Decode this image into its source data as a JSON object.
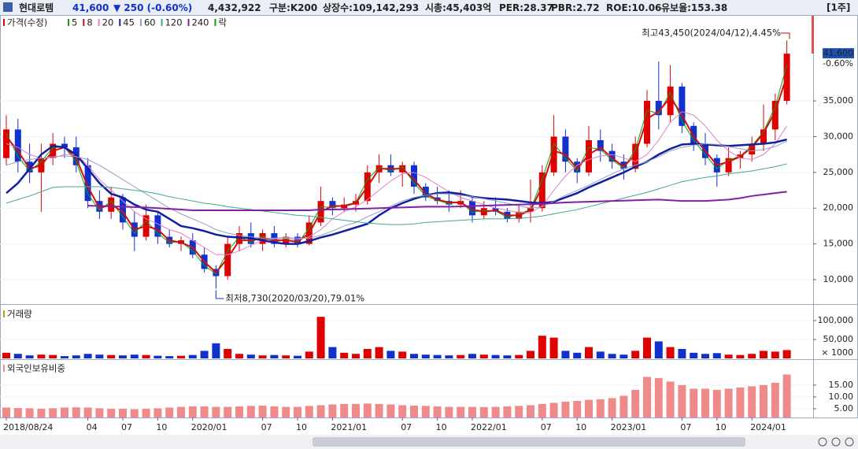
{
  "header": {
    "name": "현대로템",
    "price": "41,600",
    "change": "▼ 250 (-0.60%)",
    "volume": "4,432,922",
    "market": "구분:K200",
    "shares": "상장수:109,142,293",
    "cap": "시총:45,403억",
    "per": "PER:28.37",
    "pbr": "PBR:2.72",
    "roe": "ROE:10.06",
    "reserve": "유보율:153.38",
    "period": "[1주]"
  },
  "chart_data": [
    {
      "type": "candlestick",
      "name": "가격(수정)",
      "up_color": "#e00000",
      "down_color": "#1030d0",
      "open": [
        27000,
        31000,
        26500,
        25000,
        27000,
        29000,
        28500,
        26000,
        21000,
        19500,
        21500,
        18000,
        16000,
        19000,
        16000,
        15000,
        15500,
        13500,
        11500,
        10500,
        15000,
        16500,
        15000,
        16500,
        15000,
        16000,
        15000,
        18000,
        21000,
        20000,
        20500,
        21000,
        25000,
        26000,
        25000,
        26000,
        23000,
        21500,
        21000,
        20500,
        21000,
        19000,
        20000,
        19500,
        18500,
        19500,
        20000,
        25000,
        30000,
        26500,
        25000,
        29500,
        28000,
        26500,
        25500,
        29000,
        35000,
        33000,
        37000,
        31500,
        29000,
        27000,
        25000,
        27000,
        27500,
        29000,
        31000,
        35000
      ],
      "high": [
        33000,
        32500,
        29000,
        29000,
        30500,
        30000,
        30000,
        27000,
        22500,
        23000,
        22000,
        19500,
        20500,
        19500,
        17000,
        16000,
        16500,
        14500,
        12000,
        16000,
        17500,
        18000,
        17000,
        17500,
        16500,
        16500,
        19000,
        23000,
        21500,
        21500,
        22000,
        26000,
        27500,
        27500,
        26500,
        26500,
        23500,
        23000,
        22500,
        22500,
        21500,
        21000,
        21500,
        20000,
        20500,
        24000,
        26000,
        33000,
        31000,
        27000,
        31500,
        31000,
        29000,
        27500,
        30000,
        36500,
        40500,
        40000,
        37500,
        32000,
        30500,
        27500,
        28500,
        28000,
        30000,
        34500,
        36000,
        43450
      ],
      "low": [
        26000,
        25000,
        23500,
        19500,
        26000,
        27000,
        25000,
        20000,
        18500,
        18500,
        17000,
        14000,
        15500,
        15000,
        14500,
        14000,
        13000,
        11000,
        8730,
        10000,
        14000,
        14500,
        14000,
        14500,
        14500,
        14500,
        14800,
        17500,
        19000,
        19500,
        19500,
        20500,
        23500,
        24500,
        23000,
        22000,
        21000,
        20500,
        19500,
        20000,
        18000,
        18500,
        19000,
        18000,
        18000,
        18000,
        19500,
        24500,
        25000,
        23500,
        24500,
        26500,
        25500,
        24000,
        25000,
        28500,
        31000,
        32000,
        30500,
        28000,
        26000,
        23000,
        24500,
        25500,
        26500,
        28000,
        29500,
        34500
      ],
      "close": [
        31000,
        26500,
        25000,
        27000,
        29000,
        28500,
        26000,
        21000,
        19500,
        21500,
        18000,
        16000,
        19000,
        16000,
        15000,
        15500,
        13500,
        11500,
        10500,
        15000,
        16500,
        15000,
        16500,
        15000,
        16000,
        15000,
        18000,
        21000,
        20000,
        20500,
        21000,
        25000,
        26000,
        25000,
        26000,
        23000,
        21500,
        21000,
        20500,
        21000,
        19000,
        20000,
        19500,
        18500,
        19500,
        20000,
        25000,
        30000,
        26500,
        25000,
        29500,
        28000,
        26500,
        25500,
        29000,
        35000,
        33000,
        37000,
        31500,
        29000,
        27000,
        25000,
        27000,
        27500,
        29000,
        31000,
        35000,
        41600
      ],
      "series": [
        {
          "name": "5",
          "color": "#10a010",
          "width": 1,
          "values": [
            30500,
            27200,
            25200,
            26500,
            28500,
            28500,
            26500,
            22000,
            19700,
            21000,
            18800,
            16500,
            18200,
            16500,
            15200,
            15300,
            14000,
            12000,
            10800,
            14000,
            16000,
            15200,
            16100,
            15200,
            15700,
            15100,
            17200,
            20200,
            20100,
            20400,
            20800,
            24000,
            25700,
            25200,
            25800,
            23500,
            21700,
            21100,
            20600,
            20900,
            19400,
            19700,
            19600,
            18700,
            19200,
            19800,
            24000,
            29000,
            27000,
            25200,
            28500,
            28200,
            26700,
            25600,
            28200,
            33700,
            33200,
            36200,
            32200,
            29500,
            27500,
            25500,
            26700,
            27300,
            28700,
            30700,
            34200,
            40000
          ]
        },
        {
          "name": "8",
          "color": "#d01010",
          "width": 2,
          "values": [
            30000,
            28000,
            25500,
            26000,
            28000,
            28500,
            27000,
            23000,
            20000,
            20500,
            19500,
            17000,
            17500,
            17000,
            15500,
            15200,
            14500,
            12500,
            11000,
            13000,
            15500,
            15500,
            15800,
            15500,
            15500,
            15300,
            16500,
            19500,
            20300,
            20300,
            20700,
            23000,
            25500,
            25500,
            25500,
            24000,
            22000,
            21200,
            20800,
            20800,
            19800,
            19500,
            19700,
            19000,
            19000,
            19700,
            23000,
            28000,
            27500,
            25500,
            27500,
            28500,
            27000,
            25800,
            27500,
            32500,
            33500,
            35500,
            33000,
            30000,
            28000,
            26000,
            26500,
            27200,
            28500,
            30500,
            33500,
            38500
          ]
        },
        {
          "name": "20",
          "color": "#e080c8",
          "width": 1,
          "values": [
            29000,
            28500,
            27500,
            27000,
            27000,
            27500,
            27500,
            26000,
            24000,
            22500,
            21000,
            19500,
            18500,
            17800,
            17000,
            16500,
            15500,
            14500,
            13500,
            13500,
            14000,
            14800,
            15500,
            15700,
            15800,
            15600,
            16000,
            17000,
            18500,
            19500,
            20200,
            21200,
            22500,
            23800,
            24800,
            25000,
            24300,
            23300,
            22300,
            21500,
            21000,
            20500,
            20000,
            19700,
            19400,
            19400,
            20300,
            22500,
            24500,
            26000,
            26800,
            27300,
            27500,
            27000,
            26500,
            27500,
            29500,
            32000,
            33500,
            33000,
            31500,
            29500,
            28000,
            27000,
            26800,
            27500,
            29000,
            31500
          ]
        },
        {
          "name": "45",
          "color": "#1020a0",
          "width": 2.5,
          "values": [
            22100,
            23500,
            25500,
            27500,
            28700,
            28500,
            27500,
            25500,
            23500,
            22000,
            21500,
            20500,
            19800,
            19500,
            18500,
            17500,
            17200,
            16800,
            16300,
            16000,
            15900,
            15800,
            15500,
            15200,
            15000,
            15000,
            15400,
            15900,
            16300,
            16800,
            17300,
            17800,
            19000,
            20000,
            20700,
            21300,
            21800,
            22100,
            22200,
            22000,
            21600,
            21400,
            21300,
            21200,
            21000,
            20800,
            20700,
            20900,
            21500,
            22100,
            22900,
            23600,
            24300,
            25000,
            25800,
            26500,
            27500,
            28300,
            28900,
            29000,
            28900,
            28800,
            28700,
            28800,
            28900,
            29000,
            29200,
            29600
          ]
        },
        {
          "name": "60",
          "color": "#8fa0c8",
          "width": 1,
          "values": [
            26000,
            26500,
            26800,
            27000,
            27200,
            27300,
            27200,
            26800,
            26000,
            25000,
            24000,
            23000,
            22000,
            21000,
            20000,
            19200,
            18500,
            17800,
            17000,
            16500,
            16200,
            16000,
            15800,
            15800,
            15900,
            15800,
            15800,
            16200,
            16800,
            17500,
            18000,
            18800,
            19500,
            20300,
            21000,
            21500,
            21800,
            22000,
            22000,
            21800,
            21600,
            21300,
            21000,
            20700,
            20300,
            20000,
            20200,
            21000,
            21800,
            22500,
            23200,
            24000,
            24800,
            25500,
            26000,
            26500,
            27200,
            28000,
            28500,
            28800,
            29000,
            28900,
            28600,
            28300,
            28000,
            28200,
            28600,
            29400
          ]
        },
        {
          "name": "120",
          "color": "#40a890",
          "width": 1,
          "values": [
            20700,
            21200,
            21700,
            22300,
            22900,
            23000,
            23000,
            23000,
            23000,
            22900,
            22700,
            22500,
            22300,
            22000,
            21600,
            21300,
            21000,
            20700,
            20500,
            20200,
            20000,
            19800,
            19600,
            19400,
            19200,
            19000,
            18900,
            18700,
            18500,
            18300,
            18100,
            17900,
            17800,
            17700,
            17700,
            17800,
            18000,
            18100,
            18200,
            18300,
            18400,
            18500,
            18500,
            18500,
            18600,
            18700,
            18900,
            19200,
            19500,
            19800,
            20200,
            20600,
            21000,
            21400,
            21800,
            22200,
            22700,
            23200,
            23700,
            24000,
            24300,
            24500,
            24800,
            25000,
            25200,
            25500,
            25800,
            26200
          ]
        },
        {
          "name": "240",
          "color": "#8020a8",
          "width": 2,
          "values": [
            null,
            null,
            null,
            null,
            null,
            null,
            null,
            20350,
            20300,
            20250,
            20200,
            20150,
            20100,
            20000,
            19900,
            19800,
            19700,
            19700,
            19700,
            19700,
            19700,
            19700,
            19700,
            19700,
            19700,
            19700,
            19700,
            19800,
            19800,
            19850,
            19900,
            19950,
            20000,
            20050,
            20100,
            20150,
            20200,
            20200,
            20200,
            20240,
            20300,
            20350,
            20400,
            20450,
            20500,
            20550,
            20600,
            20700,
            20800,
            20850,
            20900,
            20950,
            21000,
            21050,
            21100,
            21150,
            21200,
            21100,
            21000,
            21000,
            21000,
            21100,
            21200,
            21400,
            21700,
            21900,
            22100,
            22300
          ]
        }
      ],
      "extra_legend": "락",
      "ylim": [
        6700,
        46900
      ],
      "yticks": [
        {
          "value": 10000,
          "label": "10,000"
        },
        {
          "value": 15000,
          "label": "15,000"
        },
        {
          "value": 20000,
          "label": "20,000"
        },
        {
          "value": 25000,
          "label": "25,000"
        },
        {
          "value": 30000,
          "label": "30,000"
        },
        {
          "value": 35000,
          "label": "35,000"
        }
      ],
      "current": {
        "value": 41600,
        "label": "41,600"
      },
      "current_change": "-0.60%",
      "annotations": [
        "최고43,450(2024/04/12),4.45%",
        "최저8,730(2020/03/20),79.01%"
      ]
    },
    {
      "type": "bar",
      "title": "거래량",
      "unit": "× 1000",
      "values": [
        15000,
        12000,
        8000,
        10000,
        9000,
        6000,
        8000,
        12000,
        10000,
        9000,
        8000,
        10000,
        9000,
        7000,
        6000,
        7000,
        9000,
        20000,
        40000,
        25000,
        12000,
        10000,
        8000,
        9000,
        8000,
        7000,
        18000,
        110000,
        30000,
        15000,
        12000,
        25000,
        30000,
        20000,
        18000,
        12000,
        10000,
        9000,
        8000,
        9000,
        12000,
        10000,
        9000,
        8000,
        9000,
        20000,
        60000,
        55000,
        20000,
        15000,
        30000,
        18000,
        12000,
        10000,
        20000,
        55000,
        45000,
        30000,
        25000,
        15000,
        12000,
        14000,
        10000,
        9000,
        12000,
        20000,
        18000,
        22000
      ],
      "ylim": [
        0,
        137500
      ],
      "yticks": [
        {
          "value": 50000,
          "label": "50,000"
        },
        {
          "value": 100000,
          "label": "100,000"
        }
      ]
    },
    {
      "type": "bar",
      "title": "외국인보유비중",
      "color": "#f08a8a",
      "values": [
        5.5,
        5.3,
        5.2,
        5.0,
        5.2,
        5.5,
        5.6,
        5.5,
        5.2,
        5.0,
        5.0,
        4.8,
        5.0,
        5.2,
        5.5,
        5.8,
        6.0,
        6.0,
        5.8,
        5.8,
        6.0,
        6.2,
        6.3,
        6.0,
        5.8,
        5.8,
        6.2,
        6.5,
        6.8,
        7.0,
        7.0,
        7.2,
        7.0,
        6.8,
        6.5,
        6.3,
        6.2,
        6.0,
        5.8,
        5.8,
        5.8,
        5.7,
        5.8,
        6.0,
        6.2,
        6.5,
        7.0,
        7.5,
        8.0,
        8.3,
        8.8,
        9.0,
        9.5,
        10.5,
        13.0,
        18.5,
        18.0,
        16.5,
        15.0,
        13.5,
        13.5,
        13.0,
        13.5,
        14.0,
        14.5,
        15.0,
        16.0,
        19.5
      ],
      "ylim": [
        1.3,
        25.3
      ],
      "yticks": [
        {
          "value": 5,
          "label": "5.00"
        },
        {
          "value": 10,
          "label": "10.00"
        },
        {
          "value": 15,
          "label": "15.00"
        }
      ],
      "categories": [
        "2018/08/24",
        null,
        null,
        null,
        null,
        null,
        null,
        "04",
        null,
        null,
        "07",
        null,
        null,
        "10",
        null,
        null,
        "2020/01",
        null,
        null,
        null,
        null,
        null,
        "07",
        null,
        null,
        "10",
        null,
        null,
        "2021/01",
        null,
        null,
        null,
        null,
        null,
        "07",
        null,
        null,
        "10",
        null,
        null,
        "2022/01",
        null,
        null,
        null,
        null,
        null,
        "07",
        null,
        null,
        "10",
        null,
        null,
        "2023/01",
        null,
        null,
        null,
        null,
        null,
        "07",
        null,
        null,
        "10",
        null,
        null,
        "2024/01",
        null,
        null,
        null
      ]
    }
  ]
}
